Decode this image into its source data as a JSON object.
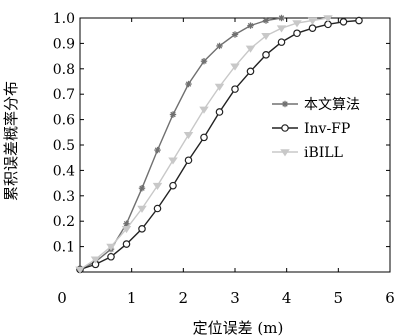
{
  "chart_data": {
    "type": "line",
    "xlabel": "定位误差 (m)",
    "ylabel": "累积误差概率分布",
    "xlim": [
      0,
      6
    ],
    "ylim": [
      0,
      1.0
    ],
    "x_ticks": [
      0,
      1,
      2,
      3,
      4,
      5,
      6
    ],
    "y_ticks": [
      0.1,
      0.2,
      0.3,
      0.4,
      0.5,
      0.6,
      0.7,
      0.8,
      0.9,
      1.0
    ],
    "x_tick_labels": [
      "0",
      "1",
      "2",
      "3",
      "4",
      "5",
      "6"
    ],
    "y_tick_labels": [
      "0.1",
      "0.2",
      "0.3",
      "0.4",
      "0.5",
      "0.6",
      "0.7",
      "0.8",
      "0.9",
      "1.0"
    ],
    "grid": false,
    "legend_position": "right",
    "series": [
      {
        "name": "本文算法",
        "color": "#707070",
        "marker": "star",
        "x": [
          0.0,
          0.3,
          0.6,
          0.9,
          1.2,
          1.5,
          1.8,
          2.1,
          2.4,
          2.7,
          3.0,
          3.3,
          3.6,
          3.9
        ],
        "y": [
          0.01,
          0.04,
          0.09,
          0.19,
          0.33,
          0.48,
          0.62,
          0.74,
          0.83,
          0.89,
          0.935,
          0.97,
          0.99,
          1.0
        ]
      },
      {
        "name": "Inv-FP",
        "color": "#222222",
        "marker": "circle",
        "x": [
          0.0,
          0.3,
          0.6,
          0.9,
          1.2,
          1.5,
          1.8,
          2.1,
          2.4,
          2.7,
          3.0,
          3.3,
          3.6,
          3.9,
          4.2,
          4.5,
          4.8,
          5.1,
          5.4
        ],
        "y": [
          0.01,
          0.03,
          0.06,
          0.11,
          0.17,
          0.25,
          0.34,
          0.44,
          0.53,
          0.63,
          0.72,
          0.79,
          0.855,
          0.905,
          0.94,
          0.96,
          0.975,
          0.985,
          0.99
        ]
      },
      {
        "name": "iBILL",
        "color": "#c8c8c8",
        "marker": "triangle",
        "x": [
          0.0,
          0.3,
          0.6,
          0.9,
          1.2,
          1.5,
          1.8,
          2.1,
          2.4,
          2.7,
          3.0,
          3.3,
          3.6,
          3.9,
          4.2,
          4.5,
          4.8
        ],
        "y": [
          0.01,
          0.05,
          0.1,
          0.17,
          0.25,
          0.34,
          0.44,
          0.54,
          0.64,
          0.73,
          0.81,
          0.88,
          0.93,
          0.96,
          0.98,
          0.99,
          1.0
        ]
      }
    ]
  }
}
